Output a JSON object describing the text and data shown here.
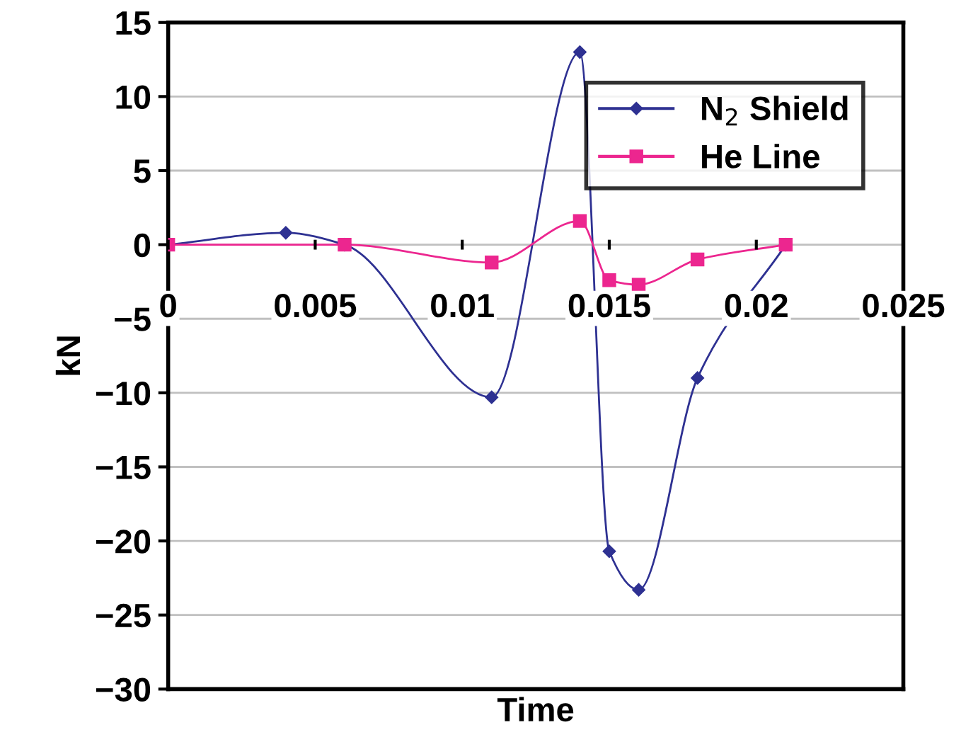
{
  "chart_data": {
    "type": "line",
    "xlabel": "Time",
    "ylabel": "kN",
    "series": [
      {
        "name": "N$_{2}$ Shield",
        "color": "#2e3192",
        "marker": "diamond",
        "x": [
          0,
          0.004,
          0.006,
          0.011,
          0.014,
          0.015,
          0.016,
          0.018,
          0.021
        ],
        "values": [
          0,
          0.8,
          0,
          -10.3,
          13,
          -20.7,
          -23.3,
          -9,
          0
        ]
      },
      {
        "name": "He Line",
        "color": "#ec268f",
        "marker": "square",
        "x": [
          0,
          0.006,
          0.011,
          0.014,
          0.015,
          0.016,
          0.018,
          0.021
        ],
        "values": [
          0,
          0,
          -1.2,
          1.6,
          -2.4,
          -2.7,
          -1,
          0
        ]
      }
    ],
    "xlim": [
      0,
      0.025
    ],
    "xticks": [
      0,
      0.005,
      0.01,
      0.015,
      0.02,
      0.025
    ],
    "ylim": [
      -30,
      15
    ],
    "yticks": [
      {
        "value": -30,
        "label": "−30"
      },
      {
        "value": -25,
        "label": "−25"
      },
      {
        "value": -20,
        "label": "−20"
      },
      {
        "value": -15,
        "label": "−15"
      },
      {
        "value": -10,
        "label": "−10"
      },
      {
        "value": -5,
        "label": "−5"
      },
      0,
      5,
      10,
      15
    ],
    "grid": "y",
    "legend": "top right",
    "line_style": "solid"
  }
}
